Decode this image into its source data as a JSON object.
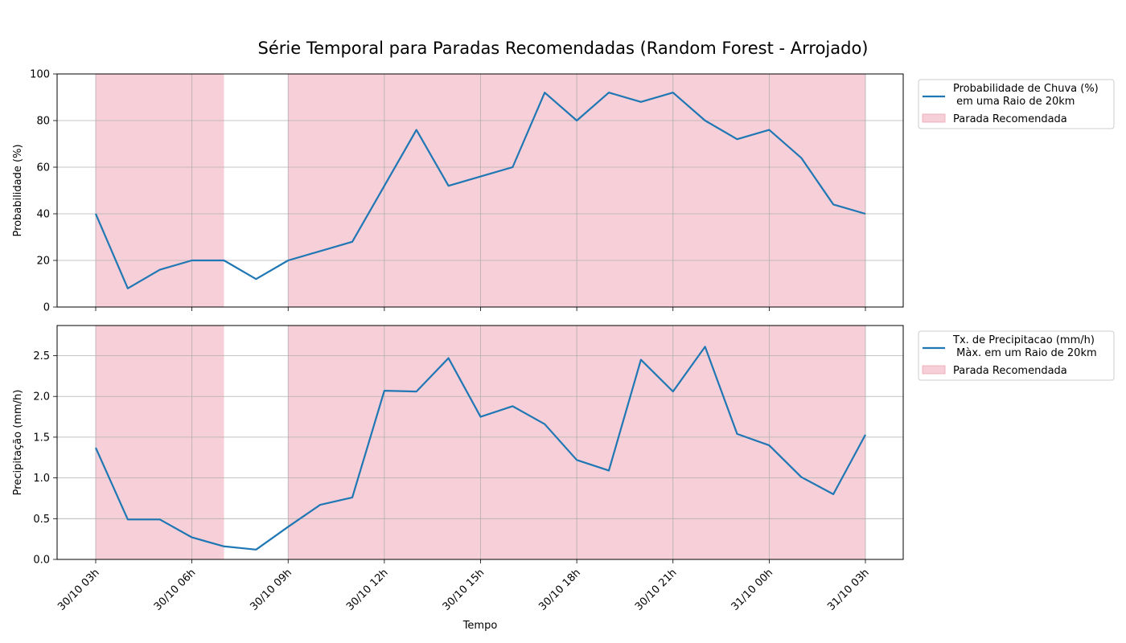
{
  "figure": {
    "title": "Série Temporal para Paradas Recomendadas (Random Forest - Arrojado)",
    "xlabel": "Tempo"
  },
  "colors": {
    "line": "#1f77b4",
    "shade": "#f7cfd8",
    "shade_edge": "#e8a7b5",
    "grid": "#b0b0b0"
  },
  "chart_data": [
    {
      "type": "line",
      "name": "probabilidade",
      "ylabel": "Probabilidade (%)",
      "ylim": [
        0,
        100
      ],
      "yticks": [
        0,
        20,
        40,
        60,
        80,
        100
      ],
      "ytick_labels": [
        "0",
        "20",
        "40",
        "60",
        "80",
        "100"
      ],
      "grid": true,
      "legend_position": "outside-right-top",
      "legend": [
        "Probabilidade de Chuva (%)\n em uma Raio de 20km",
        "Parada Recomendada"
      ],
      "series": [
        {
          "name": "Probabilidade de Chuva (%)\n em uma Raio de 20km",
          "x": [
            "30/10 03h",
            "30/10 04h",
            "30/10 05h",
            "30/10 06h",
            "30/10 07h",
            "30/10 08h",
            "30/10 09h",
            "30/10 10h",
            "30/10 11h",
            "30/10 12h",
            "30/10 13h",
            "30/10 14h",
            "30/10 15h",
            "30/10 16h",
            "30/10 17h",
            "30/10 18h",
            "30/10 19h",
            "30/10 20h",
            "30/10 21h",
            "30/10 22h",
            "30/10 23h",
            "31/10 00h",
            "31/10 01h",
            "31/10 02h",
            "31/10 03h"
          ],
          "values": [
            40,
            8,
            16,
            20,
            20,
            12,
            20,
            24,
            28,
            52,
            76,
            52,
            56,
            60,
            92,
            80,
            92,
            88,
            92,
            80,
            72,
            76,
            64,
            44,
            40
          ]
        }
      ],
      "shaded_regions": [
        {
          "start": "30/10 03h",
          "end": "30/10 07h",
          "label": "Parada Recomendada"
        },
        {
          "start": "30/10 09h",
          "end": "31/10 03h",
          "label": "Parada Recomendada"
        }
      ]
    },
    {
      "type": "line",
      "name": "precipitacao",
      "ylabel": "Precipitação (mm/h)",
      "ylim": [
        0,
        2.87
      ],
      "yticks": [
        0,
        0.5,
        1.0,
        1.5,
        2.0,
        2.5
      ],
      "ytick_labels": [
        "0.0",
        "0.5",
        "1.0",
        "1.5",
        "2.0",
        "2.5"
      ],
      "grid": true,
      "legend_position": "outside-right-top",
      "legend": [
        "Tx. de Precipitacao (mm/h)\n Màx. em um Raio de 20km",
        "Parada Recomendada"
      ],
      "xticks": [
        "30/10 03h",
        "30/10 06h",
        "30/10 09h",
        "30/10 12h",
        "30/10 15h",
        "30/10 18h",
        "30/10 21h",
        "31/10 00h",
        "31/10 03h"
      ],
      "series": [
        {
          "name": "Tx. de Precipitacao (mm/h)\n Màx. em um Raio de 20km",
          "x": [
            "30/10 03h",
            "30/10 04h",
            "30/10 05h",
            "30/10 06h",
            "30/10 07h",
            "30/10 08h",
            "30/10 09h",
            "30/10 10h",
            "30/10 11h",
            "30/10 12h",
            "30/10 13h",
            "30/10 14h",
            "30/10 15h",
            "30/10 16h",
            "30/10 17h",
            "30/10 18h",
            "30/10 19h",
            "30/10 20h",
            "30/10 21h",
            "30/10 22h",
            "30/10 23h",
            "31/10 00h",
            "31/10 01h",
            "31/10 02h",
            "31/10 03h"
          ],
          "values": [
            1.37,
            0.49,
            0.49,
            0.27,
            0.16,
            0.12,
            0.4,
            0.67,
            0.76,
            2.07,
            2.06,
            2.47,
            1.75,
            1.88,
            1.66,
            1.22,
            1.09,
            2.45,
            2.06,
            2.61,
            1.54,
            1.4,
            1.01,
            0.8,
            1.53
          ]
        }
      ],
      "shaded_regions": [
        {
          "start": "30/10 03h",
          "end": "30/10 07h",
          "label": "Parada Recomendada"
        },
        {
          "start": "30/10 09h",
          "end": "31/10 03h",
          "label": "Parada Recomendada"
        }
      ]
    }
  ]
}
